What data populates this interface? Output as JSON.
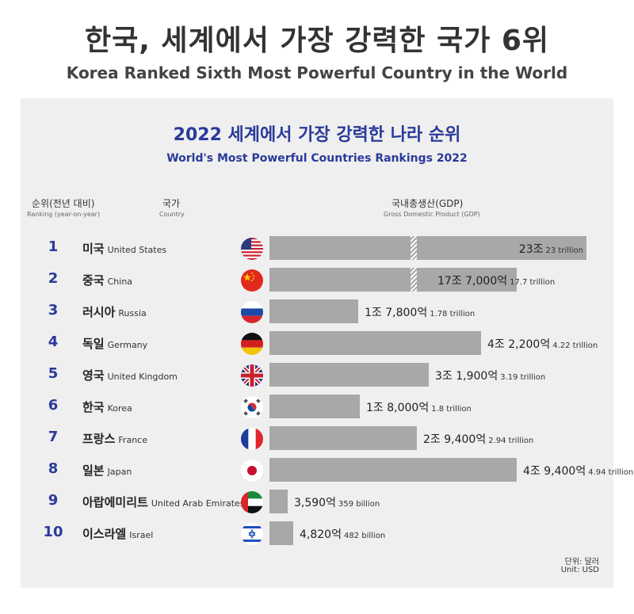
{
  "title": "한국, 세계에서 가장 강력한 국가 6위",
  "subtitle": "Korea Ranked Sixth Most Powerful Country in the World",
  "chart_data": {
    "type": "bar",
    "title": "2022 세계에서 가장 강력한 나라 순위",
    "subtitle": "World's Most Powerful Countries Rankings 2022",
    "headers": {
      "rank_ko": "순위(전년 대비)",
      "rank_en": "Ranking (year-on-year)",
      "country_ko": "국가",
      "country_en": "Country",
      "gdp_ko": "국내총생산(GDP)",
      "gdp_en": "Gross Domestic Product (GDP)"
    },
    "unit_ko": "단위: 달러",
    "unit_en": "Unit: USD",
    "rows": [
      {
        "rank": "1",
        "country_ko": "미국",
        "country_en": "United States",
        "value_ko": "23조",
        "value_en": "23 trillion",
        "value": 23000,
        "flag": "us-flag-icon",
        "broken": true
      },
      {
        "rank": "2",
        "country_ko": "중국",
        "country_en": "China",
        "value_ko": "17조 7,000억",
        "value_en": "17.7 trillion",
        "value": 17700,
        "flag": "china-flag-icon",
        "broken": true
      },
      {
        "rank": "3",
        "country_ko": "러시아",
        "country_en": "Russia",
        "value_ko": "1조 7,800억",
        "value_en": "1.78 trillion",
        "value": 1780,
        "flag": "russia-flag-icon"
      },
      {
        "rank": "4",
        "country_ko": "독일",
        "country_en": "Germany",
        "value_ko": "4조 2,200억",
        "value_en": "4.22 trillion",
        "value": 4220,
        "flag": "germany-flag-icon"
      },
      {
        "rank": "5",
        "country_ko": "영국",
        "country_en": "United Kingdom",
        "value_ko": "3조 1,900억",
        "value_en": "3.19 trillion",
        "value": 3190,
        "flag": "uk-flag-icon"
      },
      {
        "rank": "6",
        "country_ko": "한국",
        "country_en": "Korea",
        "value_ko": "1조 8,000억",
        "value_en": "1.8 trillion",
        "value": 1800,
        "flag": "korea-flag-icon"
      },
      {
        "rank": "7",
        "country_ko": "프랑스",
        "country_en": "France",
        "value_ko": "2조 9,400억",
        "value_en": "2.94 trillion",
        "value": 2940,
        "flag": "france-flag-icon"
      },
      {
        "rank": "8",
        "country_ko": "일본",
        "country_en": "Japan",
        "value_ko": "4조 9,400억",
        "value_en": "4.94 trillion",
        "value": 4940,
        "flag": "japan-flag-icon"
      },
      {
        "rank": "9",
        "country_ko": "아랍에미리트",
        "country_en": "United Arab Emirates",
        "value_ko": "3,590억",
        "value_en": "359 billion",
        "value": 359,
        "flag": "uae-flag-icon"
      },
      {
        "rank": "10",
        "country_ko": "이스라엘",
        "country_en": "Israel",
        "value_ko": "4,820억",
        "value_en": "482 billion",
        "value": 482,
        "flag": "israel-flag-icon"
      }
    ]
  }
}
